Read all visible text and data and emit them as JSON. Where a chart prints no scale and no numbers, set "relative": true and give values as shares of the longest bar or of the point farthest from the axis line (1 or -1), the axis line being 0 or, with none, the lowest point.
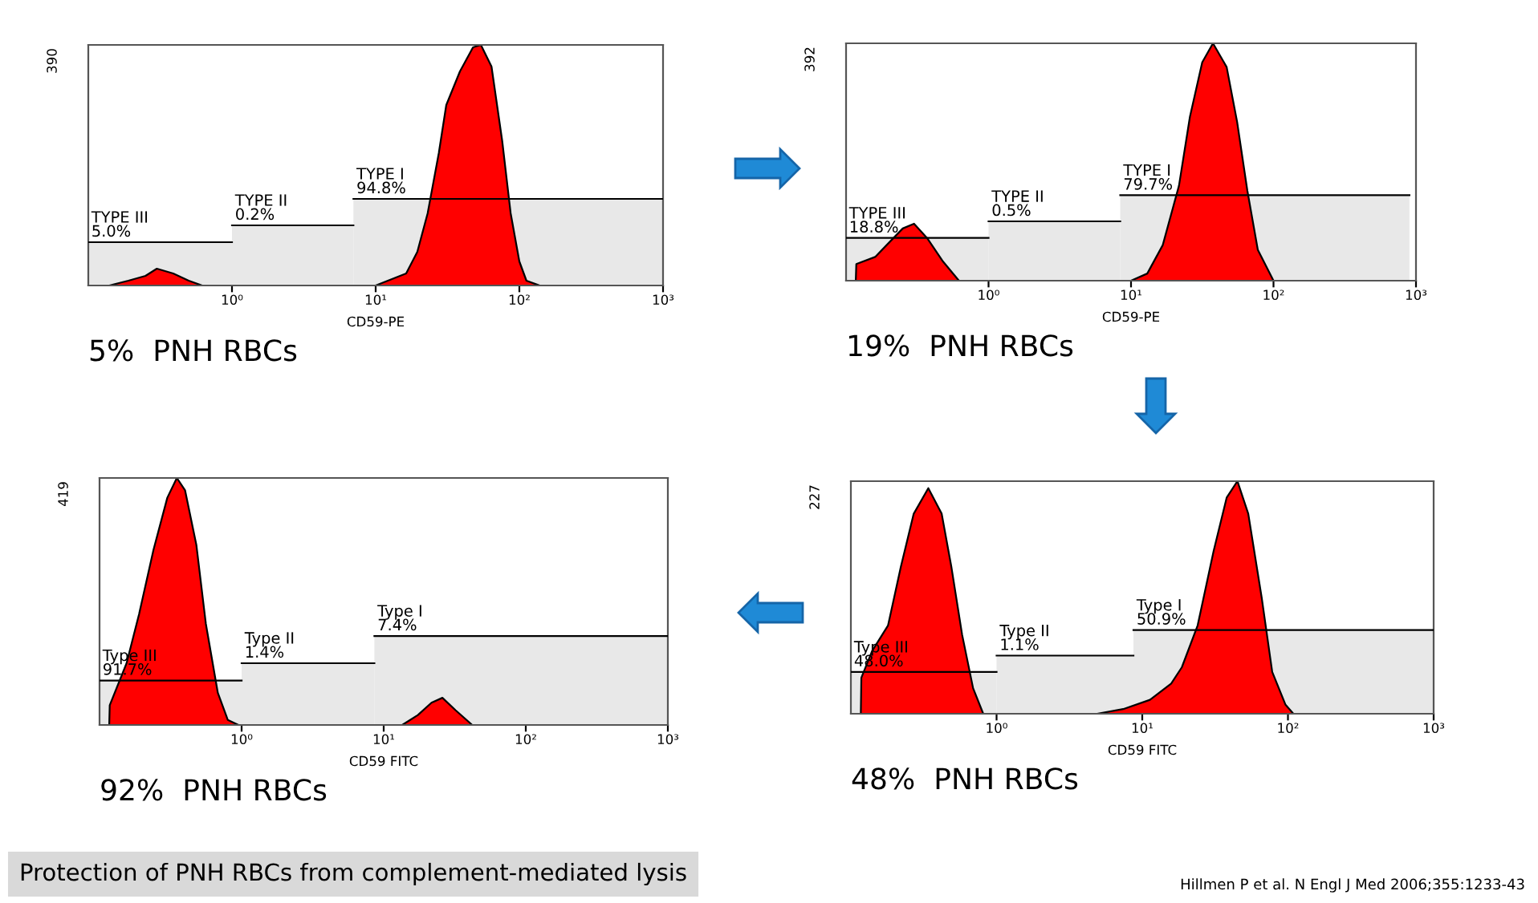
{
  "chart_data": [
    {
      "type": "area",
      "relative": true,
      "xlabel": "CD59-PE",
      "log": "x",
      "xlim": [
        0.1,
        1000
      ],
      "xticks": [
        {
          "value": 1,
          "label": "10⁰"
        },
        {
          "value": 10,
          "label": "10¹"
        },
        {
          "value": 100,
          "label": "10²"
        },
        {
          "value": 1000,
          "label": "10³"
        }
      ],
      "series": [
        {
          "color": "#ff0000",
          "x": [
            0.14,
            0.19,
            0.25,
            0.3,
            0.39,
            0.5,
            0.62,
            10,
            16.3,
            19.5,
            23,
            27.5,
            31,
            38.6,
            47.6,
            54,
            64,
            76,
            87,
            100,
            112,
            138
          ],
          "values": [
            0,
            0.02,
            0.04,
            0.07,
            0.05,
            0.02,
            0,
            0,
            0.05,
            0.14,
            0.3,
            0.55,
            0.75,
            0.89,
            0.99,
            1,
            0.91,
            0.6,
            0.3,
            0.1,
            0.02,
            0
          ]
        }
      ],
      "bands": [
        {
          "axis": "x",
          "from": 0.1,
          "to": 1,
          "label": "TYPE III\n5.0%"
        },
        {
          "axis": "x",
          "from": 1,
          "to": 7,
          "label": "TYPE II\n0.2%"
        },
        {
          "axis": "x",
          "from": 7,
          "to": 1000,
          "label": "TYPE I\n94.8%"
        }
      ],
      "annotations": [
        "5%  PNH RBCs",
        "390"
      ]
    },
    {
      "type": "area",
      "relative": true,
      "xlabel": "CD59-PE",
      "log": "x",
      "xlim": [
        0.1,
        1000
      ],
      "xticks": [
        {
          "value": 1,
          "label": "10⁰"
        },
        {
          "value": 10,
          "label": "10¹"
        },
        {
          "value": 100,
          "label": "10²"
        },
        {
          "value": 1000,
          "label": "10³"
        }
      ],
      "series": [
        {
          "color": "#ff0000",
          "x": [
            0.117,
            0.118,
            0.16,
            0.2,
            0.25,
            0.3,
            0.37,
            0.48,
            0.62,
            10,
            13,
            16.7,
            21.7,
            25.9,
            31.6,
            37.6,
            46.9,
            55.5,
            65.5,
            77.6,
            100
          ],
          "values": [
            0,
            0.07,
            0.1,
            0.16,
            0.22,
            0.24,
            0.18,
            0.08,
            0,
            0,
            0.03,
            0.15,
            0.4,
            0.69,
            0.92,
            1,
            0.9,
            0.67,
            0.38,
            0.13,
            0
          ]
        }
      ],
      "bands": [
        {
          "axis": "x",
          "from": 0.1,
          "to": 1,
          "label": "TYPE III\n18.8%"
        },
        {
          "axis": "x",
          "from": 1,
          "to": 8.4,
          "label": "TYPE II\n0.5%"
        },
        {
          "axis": "x",
          "from": 8.4,
          "to": 900,
          "label": "TYPE I\n79.7%"
        }
      ],
      "annotations": [
        "19%  PNH RBCs",
        "392"
      ]
    },
    {
      "type": "area",
      "relative": true,
      "xlabel": "CD59 FITC",
      "log": "x",
      "xlim": [
        0.1,
        1000
      ],
      "xticks": [
        {
          "value": 1,
          "label": "10⁰"
        },
        {
          "value": 10,
          "label": "10¹"
        },
        {
          "value": 100,
          "label": "10²"
        },
        {
          "value": 1000,
          "label": "10³"
        }
      ],
      "series": [
        {
          "color": "#ff0000",
          "x": [
            0.117,
            0.118,
            0.155,
            0.19,
            0.24,
            0.3,
            0.35,
            0.4,
            0.48,
            0.56,
            0.68,
            0.8,
            0.95,
            13.5,
            17.4,
            21.7,
            25.9,
            32,
            42
          ],
          "values": [
            0,
            0.08,
            0.25,
            0.45,
            0.71,
            0.92,
            1,
            0.95,
            0.73,
            0.41,
            0.13,
            0.02,
            0,
            0,
            0.04,
            0.09,
            0.11,
            0.06,
            0
          ]
        }
      ],
      "bands": [
        {
          "axis": "x",
          "from": 0.1,
          "to": 1,
          "label": "Type III\n91.7%"
        },
        {
          "axis": "x",
          "from": 1,
          "to": 8.6,
          "label": "Type II\n1.4%"
        },
        {
          "axis": "x",
          "from": 8.6,
          "to": 1000,
          "label": "Type I\n7.4%"
        }
      ],
      "annotations": [
        "92%  PNH RBCs",
        "419"
      ]
    },
    {
      "type": "area",
      "relative": true,
      "xlabel": "CD59 FITC",
      "log": "x",
      "xlim": [
        0.1,
        1000
      ],
      "xticks": [
        {
          "value": 1,
          "label": "10⁰"
        },
        {
          "value": 10,
          "label": "10¹"
        },
        {
          "value": 100,
          "label": "10²"
        },
        {
          "value": 1000,
          "label": "10³"
        }
      ],
      "series": [
        {
          "color": "#ff0000",
          "x": [
            0.117,
            0.118,
            0.14,
            0.18,
            0.22,
            0.27,
            0.34,
            0.42,
            0.49,
            0.58,
            0.69,
            0.81,
            4.9,
            7.4,
            11.3,
            15.8,
            18.7,
            24,
            30.9,
            38,
            45,
            53.4,
            66,
            78,
            96,
            109
          ],
          "values": [
            0,
            0.155,
            0.27,
            0.38,
            0.63,
            0.86,
            0.97,
            0.86,
            0.63,
            0.34,
            0.11,
            0,
            0,
            0.02,
            0.06,
            0.13,
            0.2,
            0.38,
            0.7,
            0.93,
            1,
            0.86,
            0.5,
            0.18,
            0.04,
            0
          ]
        }
      ],
      "bands": [
        {
          "axis": "x",
          "from": 0.1,
          "to": 1,
          "label": "Type III\n48.0%"
        },
        {
          "axis": "x",
          "from": 1,
          "to": 8.7,
          "label": "Type II\n1.1%"
        },
        {
          "axis": "x",
          "from": 8.7,
          "to": 1000,
          "label": "Type I\n50.9%"
        }
      ],
      "annotations": [
        "48%  PNH RBCs",
        "227",
        "Protection of PNH RBCs from complement-mediated lysis",
        "Hillmen P et al. N Engl J Med 2006;355:1233-43"
      ]
    }
  ]
}
